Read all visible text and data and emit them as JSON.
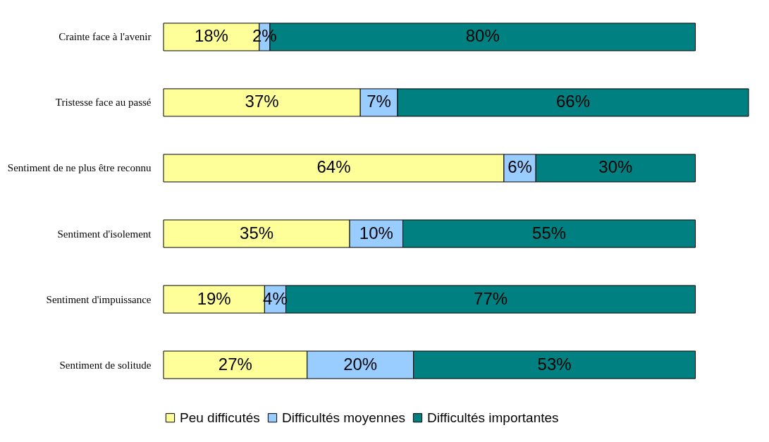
{
  "chart_data": {
    "type": "bar",
    "orientation": "horizontal",
    "stacked": true,
    "legend": "bottom",
    "categories": [
      "Crainte face à l'avenir",
      "Tristesse face au passé",
      "Sentiment de ne plus être reconnu",
      "Sentiment d'isolement",
      "Sentiment d'impuissance",
      "Sentiment de solitude"
    ],
    "series": [
      {
        "name": "Peu difficutés",
        "color": "#ffff99",
        "values": [
          18,
          37,
          64,
          35,
          19,
          27
        ],
        "value_labels": [
          "18%",
          "37%",
          "64%",
          "35%",
          "19%",
          "27%"
        ]
      },
      {
        "name": "Difficultés moyennes",
        "color": "#99ccff",
        "values": [
          2,
          7,
          6,
          10,
          4,
          20
        ],
        "value_labels": [
          "2%",
          "7%",
          "6%",
          "10%",
          "4%",
          "20%"
        ]
      },
      {
        "name": "Difficultés importantes",
        "color": "#008080",
        "values": [
          80,
          66,
          30,
          55,
          77,
          53
        ],
        "value_labels": [
          "80%",
          "66%",
          "30%",
          "55%",
          "77%",
          "53%"
        ]
      }
    ]
  }
}
